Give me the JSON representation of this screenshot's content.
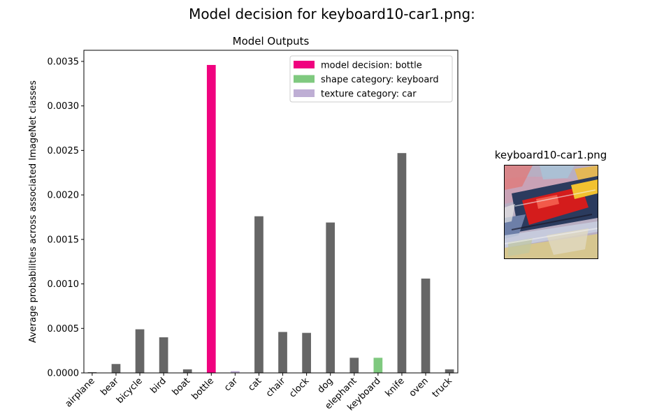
{
  "figure": {
    "title": "Model decision for keyboard10-car1.png:"
  },
  "image_panel": {
    "title": "keyboard10-car1.png"
  },
  "colors": {
    "default_bar": "#666666",
    "decision": "#f0027f",
    "shape": "#7fc97f",
    "texture": "#beaed4"
  },
  "chart_data": {
    "type": "bar",
    "title": "Model Outputs",
    "xlabel": "",
    "ylabel": "Average probabilities across associated ImageNet classes",
    "categories": [
      "airplane",
      "bear",
      "bicycle",
      "bird",
      "boat",
      "bottle",
      "car",
      "cat",
      "chair",
      "clock",
      "dog",
      "elephant",
      "keyboard",
      "knife",
      "oven",
      "truck"
    ],
    "values": [
      8e-06,
      0.0001,
      0.00049,
      0.0004,
      4e-05,
      0.00346,
      2e-05,
      0.00176,
      0.00046,
      0.00045,
      0.00169,
      0.00017,
      0.00017,
      0.00247,
      0.00106,
      4e-05
    ],
    "bar_colors": [
      "#666666",
      "#666666",
      "#666666",
      "#666666",
      "#666666",
      "#f0027f",
      "#beaed4",
      "#666666",
      "#666666",
      "#666666",
      "#666666",
      "#666666",
      "#7fc97f",
      "#666666",
      "#666666",
      "#666666"
    ],
    "ylim": [
      0,
      0.003625
    ],
    "yticks": [
      "0.0000",
      "0.0005",
      "0.0010",
      "0.0015",
      "0.0020",
      "0.0025",
      "0.0030",
      "0.0035"
    ],
    "ytick_values": [
      0,
      0.0005,
      0.001,
      0.0015,
      0.002,
      0.0025,
      0.003,
      0.0035
    ],
    "grid": false,
    "legend_position": "top-right",
    "legend": [
      {
        "label": "model decision: bottle",
        "color": "#f0027f"
      },
      {
        "label": "shape category: keyboard",
        "color": "#7fc97f"
      },
      {
        "label": "texture category: car",
        "color": "#beaed4"
      }
    ]
  }
}
